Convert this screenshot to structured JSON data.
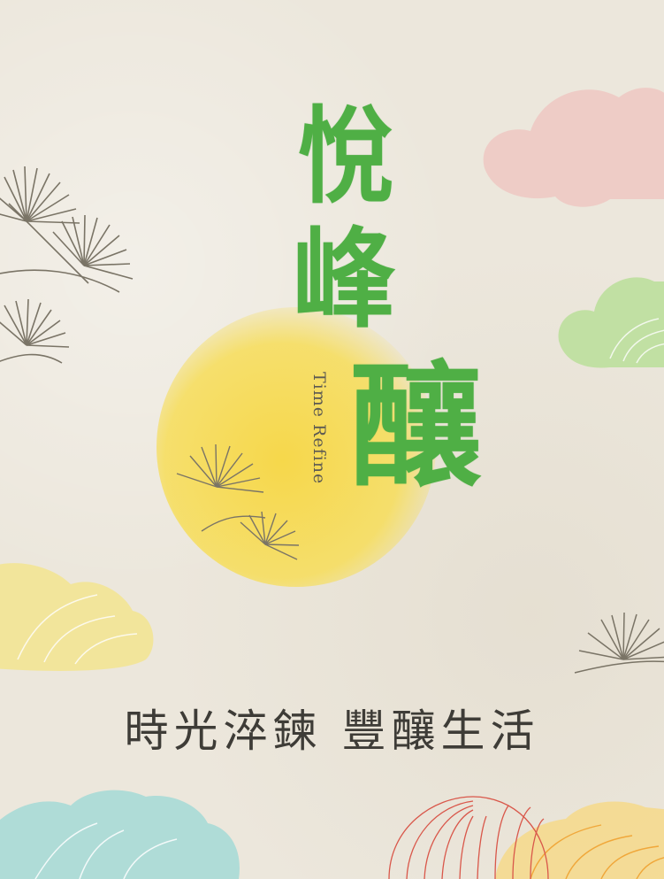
{
  "brand": {
    "title_chars": [
      "悅",
      "峰",
      "釀"
    ],
    "subtitle_en": "Time Refine"
  },
  "tagline": "時光淬鍊 豐釀生活",
  "colors": {
    "background": "#ece7dc",
    "title_green": "#4faf45",
    "sun_yellow": "#f6d94a",
    "cloud_pink": "#eec7c2",
    "cloud_green": "#bddf9c",
    "cloud_yellow": "#f3e48f",
    "cloud_blue": "#a9dad6",
    "cloud_orange": "#f6c45c",
    "line_red": "#d9574a",
    "pine_line": "#7a7466"
  }
}
